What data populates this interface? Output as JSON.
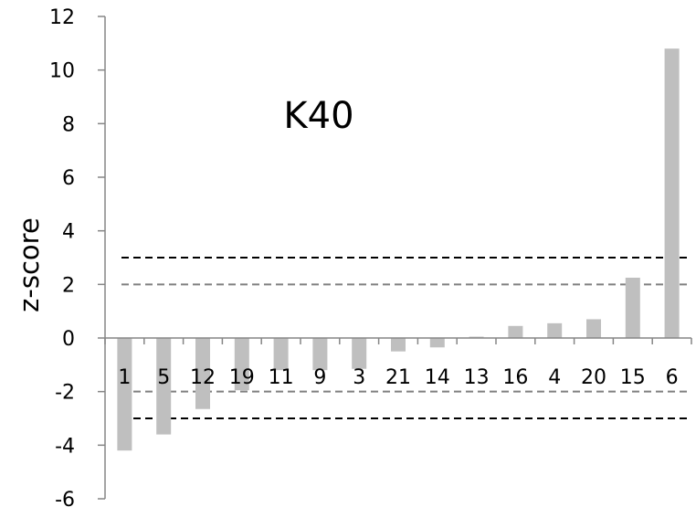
{
  "chart_data": {
    "type": "bar",
    "title": "",
    "annotation": "K40",
    "xlabel": "",
    "ylabel": "z-score",
    "categories": [
      "1",
      "5",
      "12",
      "19",
      "11",
      "9",
      "3",
      "21",
      "14",
      "13",
      "16",
      "4",
      "20",
      "15",
      "6"
    ],
    "series": [
      {
        "values": [
          -4.2,
          -3.6,
          -2.65,
          -1.95,
          -1.2,
          -1.2,
          -1.15,
          -0.5,
          -0.35,
          0.05,
          0.45,
          0.55,
          0.7,
          2.25,
          10.8
        ]
      }
    ],
    "ylim": [
      -6,
      12
    ],
    "yticks": [
      -6,
      -4,
      -2,
      0,
      2,
      4,
      6,
      8,
      10,
      12
    ],
    "ytick_labels": [
      "-6",
      "-4",
      "-2",
      "0",
      "2",
      "4",
      "6",
      "8",
      "10",
      "12"
    ],
    "grid": false,
    "bar_color": "#BFBFBF",
    "reference_lines": [
      {
        "y": 3,
        "color": "#000000",
        "style": "dashed"
      },
      {
        "y": 2,
        "color": "#808080",
        "style": "dashed"
      },
      {
        "y": -2,
        "color": "#808080",
        "style": "dashed"
      },
      {
        "y": -3,
        "color": "#000000",
        "style": "dashed"
      }
    ]
  }
}
